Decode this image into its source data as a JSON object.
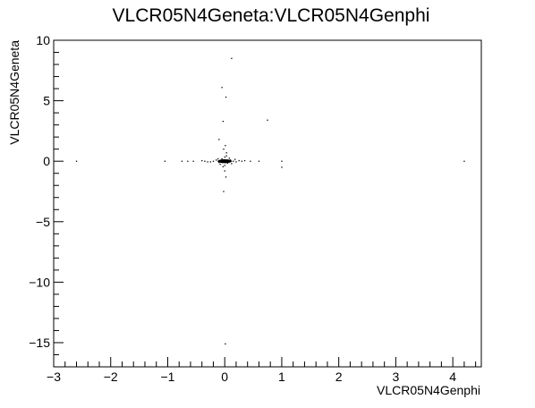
{
  "chart_data": {
    "type": "scatter",
    "title": "VLCR05N4Geneta:VLCR05N4Genphi",
    "xlabel": "VLCR05N4Genphi",
    "ylabel": "VLCR05N4Geneta",
    "xlim": [
      -3,
      4.5
    ],
    "ylim": [
      -17,
      10
    ],
    "x_ticks": [
      -3,
      -2,
      -1,
      0,
      1,
      2,
      3,
      4
    ],
    "x_tick_labels": [
      "−3",
      "−2",
      "−1",
      "0",
      "1",
      "2",
      "3",
      "4"
    ],
    "y_ticks": [
      -15,
      -10,
      -5,
      0,
      5,
      10
    ],
    "y_tick_labels": [
      "−15",
      "−10",
      "−5",
      "0",
      "5",
      "10"
    ],
    "grid": false,
    "legend": "none",
    "marker_color": "#000000",
    "points": [
      [
        0.12,
        8.5
      ],
      [
        -0.05,
        6.1
      ],
      [
        0.02,
        5.3
      ],
      [
        -0.03,
        3.3
      ],
      [
        0.75,
        3.4
      ],
      [
        -0.1,
        1.8
      ],
      [
        0.01,
        1.3
      ],
      [
        -0.02,
        1.0
      ],
      [
        0.03,
        0.7
      ],
      [
        -2.6,
        0.0
      ],
      [
        -1.05,
        0.0
      ],
      [
        -0.75,
        0.0
      ],
      [
        -0.65,
        0.0
      ],
      [
        -0.55,
        0.0
      ],
      [
        -0.4,
        0.05
      ],
      [
        -0.3,
        -0.05
      ],
      [
        0.35,
        0.05
      ],
      [
        0.45,
        0.0
      ],
      [
        0.6,
        0.0
      ],
      [
        1.0,
        0.0
      ],
      [
        1.0,
        -0.5
      ],
      [
        4.2,
        0.0
      ],
      [
        0.0,
        -0.8
      ],
      [
        0.02,
        -1.3
      ],
      [
        -0.02,
        -2.5
      ],
      [
        0.01,
        -15.1
      ],
      [
        -0.15,
        0.1
      ],
      [
        -0.1,
        -0.1
      ],
      [
        -0.05,
        0.2
      ],
      [
        0.0,
        0.0
      ],
      [
        0.05,
        -0.15
      ],
      [
        0.1,
        0.1
      ],
      [
        0.15,
        0.0
      ],
      [
        0.2,
        -0.05
      ],
      [
        -0.2,
        0.0
      ],
      [
        0.0,
        0.35
      ],
      [
        0.0,
        -0.35
      ],
      [
        0.08,
        0.25
      ],
      [
        -0.08,
        -0.25
      ],
      [
        0.12,
        -0.2
      ],
      [
        -0.12,
        0.2
      ],
      [
        0.25,
        0.05
      ],
      [
        -0.25,
        -0.05
      ],
      [
        0.03,
        0.45
      ],
      [
        -0.03,
        -0.45
      ],
      [
        0.3,
        0.0
      ],
      [
        -0.35,
        0.0
      ],
      [
        0.06,
        0.05
      ],
      [
        -0.06,
        -0.05
      ],
      [
        0.18,
        0.15
      ]
    ]
  }
}
